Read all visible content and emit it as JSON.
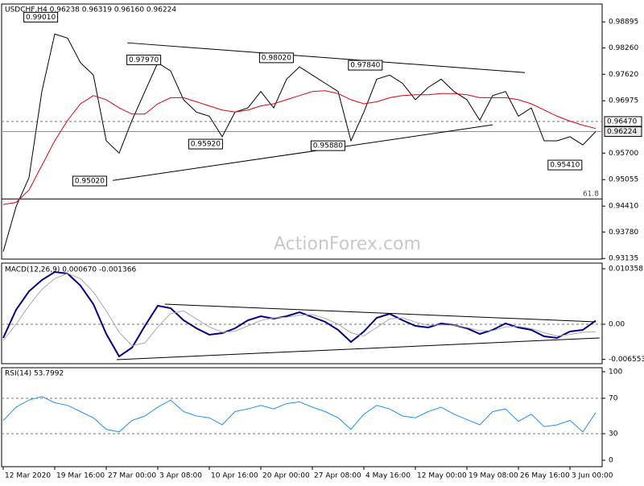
{
  "chart_data": [
    {
      "type": "line",
      "title": "USDCHF,H4  0.96238 0.96319 0.96160 0.96224",
      "watermark": "ActionForex.com",
      "xlim": [
        -0.125,
        46.5
      ],
      "ylim": [
        0.9312,
        0.9933
      ],
      "yticks": [
        0.98895,
        {
          "value": 0.9826,
          "label": "0.98260"
        },
        {
          "value": 0.9762,
          "label": "0.97620"
        },
        0.96975,
        {
          "value": 0.957,
          "label": "0.95700"
        },
        0.95055,
        {
          "value": 0.9441,
          "label": "0.94410"
        },
        {
          "value": 0.9378,
          "label": "0.93780"
        },
        0.93135
      ],
      "series": [
        {
          "color": "#000000",
          "values": [
            0.933,
            0.944,
            0.951,
            0.972,
            0.986,
            0.985,
            0.979,
            0.976,
            0.96,
            0.957,
            0.965,
            0.972,
            0.979,
            0.977,
            0.97,
            0.967,
            0.966,
            0.961,
            0.967,
            0.968,
            0.972,
            0.968,
            0.975,
            0.978,
            0.976,
            0.974,
            0.972,
            0.96,
            0.967,
            0.975,
            0.976,
            0.974,
            0.97,
            0.973,
            0.975,
            0.972,
            0.97,
            0.965,
            0.971,
            0.972,
            0.966,
            0.968,
            0.96,
            0.96,
            0.961,
            0.959,
            0.96224
          ]
        },
        {
          "color": "#e0000f",
          "values": [
            0.9445,
            0.945,
            0.948,
            0.954,
            0.96,
            0.965,
            0.969,
            0.971,
            0.97,
            0.968,
            0.9665,
            0.9665,
            0.969,
            0.9705,
            0.9705,
            0.9695,
            0.9685,
            0.9675,
            0.967,
            0.9675,
            0.9685,
            0.969,
            0.97,
            0.971,
            0.972,
            0.9722,
            0.9715,
            0.97,
            0.969,
            0.9695,
            0.9705,
            0.971,
            0.9712,
            0.9712,
            0.9715,
            0.9715,
            0.9712,
            0.9705,
            0.9705,
            0.9705,
            0.97,
            0.969,
            0.9675,
            0.966,
            0.9648,
            0.9638,
            0.963
          ]
        }
      ],
      "annotations": [
        {
          "label": "0.99010",
          "value": 0.9901,
          "x": 1.6
        },
        {
          "label": "0.97970",
          "value": 0.9797,
          "x": 9.6
        },
        {
          "label": "0.98020",
          "value": 0.9802,
          "x": 19.9
        },
        {
          "label": "0.97840",
          "value": 0.9784,
          "x": 26.8
        },
        {
          "label": "0.95920",
          "value": 0.9592,
          "x": 14.4
        },
        {
          "label": "0.95880",
          "value": 0.9588,
          "x": 23.9
        },
        {
          "label": "0.95020",
          "value": 0.9502,
          "x": 5.4
        },
        {
          "label": "0.95410",
          "value": 0.9541,
          "x": 42.3
        }
      ],
      "trendlines": [
        {
          "x": [
            9.625,
            40.5
          ],
          "y": [
            0.98386,
            0.97661
          ]
        },
        {
          "x": [
            8.5,
            38
          ],
          "y": [
            0.95036,
            0.96388
          ]
        }
      ],
      "levels": [
        {
          "value": 0.9647,
          "style": "dashed"
        },
        {
          "value": 0.96224,
          "style": "solid"
        }
      ],
      "fib_level": {
        "ratio": 61.8,
        "price": 0.94585
      },
      "price_markers": [
        {
          "value": 0.9647,
          "label": "0.96470"
        },
        {
          "value": 0.96224,
          "label": "0.96224"
        }
      ]
    },
    {
      "type": "line",
      "title": "MACD(12,26,9) 0.000670 -0.001366",
      "xlim": [
        -0.125,
        46.5
      ],
      "ylim": [
        -0.00736,
        0.01141
      ],
      "yticks": [
        0.010358,
        {
          "value": 0,
          "label": "0.00"
        },
        -0.006553
      ],
      "levels": [
        {
          "value": 0,
          "style": "dashed"
        }
      ],
      "series": [
        {
          "color": "#000080",
          "values": [
            -0.00255,
            0.0027,
            0.00615,
            0.00826,
            0.00976,
            0.00946,
            0.0072,
            0.00375,
            -0.0018,
            -0.006,
            -0.00435,
            -0.0003,
            0.00345,
            0.003,
            0.00075,
            -0.00075,
            -0.00195,
            -0.00165,
            -0.00075,
            0.00075,
            0.0015,
            0.00105,
            0.0015,
            0.00225,
            0.00135,
            0.00045,
            -0.00105,
            -0.0033,
            -0.00135,
            0.0012,
            0.00195,
            0.00075,
            -0.0003,
            -0.0006,
            0.00015,
            -0.00015,
            -0.00075,
            -0.0018,
            -0.00105,
            0.00015,
            -0.0006,
            -0.00105,
            -0.00225,
            -0.00255,
            -0.00135,
            -0.00105,
            0.00067
          ]
        },
        {
          "color": "#a8a8a8",
          "values": [
            -0.003,
            0,
            0.0035,
            0.0065,
            0.0085,
            0.0095,
            0.0085,
            0.006,
            0.0025,
            -0.0015,
            -0.004,
            -0.0035,
            -0.0005,
            0.002,
            0.0025,
            0.001,
            -0.0005,
            -0.0015,
            -0.0013,
            -0.0003,
            0.0007,
            0.0012,
            0.0013,
            0.0017,
            0.0018,
            0.0011,
            0,
            -0.0016,
            -0.0022,
            -0.0006,
            0.001,
            0.0012,
            0.0004,
            -0.0002,
            -0.0001,
            -0.0002,
            -0.0006,
            -0.0012,
            -0.0012,
            -0.0005,
            -0.0004,
            -0.0008,
            -0.0016,
            -0.0022,
            -0.0019,
            -0.0015,
            -0.001366
          ]
        }
      ],
      "trendlines": [
        {
          "x": [
            12.56,
            46.0
          ],
          "y": [
            0.00375,
            0.00045
          ]
        },
        {
          "x": [
            8.81,
            46.3
          ],
          "y": [
            -0.0066,
            -0.00255
          ]
        }
      ]
    },
    {
      "type": "line",
      "title": "RSI(14) 53.7992",
      "xlim": [
        -0.125,
        46.5
      ],
      "ylim": [
        -7.3,
        104.5
      ],
      "yticks": [
        100,
        70,
        30,
        0
      ],
      "levels": [
        {
          "value": 70,
          "style": "dashed"
        },
        {
          "value": 30,
          "style": "dashed"
        }
      ],
      "series": [
        {
          "color": "#1e90ff",
          "values": [
            45,
            60,
            68,
            72,
            65,
            62,
            55,
            48,
            35,
            32,
            45,
            50,
            60,
            68,
            55,
            50,
            48,
            40,
            55,
            58,
            62,
            58,
            64,
            66,
            60,
            55,
            48,
            35,
            52,
            62,
            58,
            50,
            48,
            55,
            60,
            52,
            46,
            40,
            55,
            58,
            44,
            52,
            38,
            40,
            45,
            32,
            53.8
          ]
        }
      ],
      "xticks": [
        {
          "value": 0,
          "label": "12 Mar 2020"
        },
        {
          "value": 4,
          "label": "19 Mar 16:00"
        },
        {
          "value": 8,
          "label": "27 Mar 00:00"
        },
        {
          "value": 12,
          "label": "3 Apr 08:00"
        },
        {
          "value": 16,
          "label": "10 Apr 16:00"
        },
        {
          "value": 20,
          "label": "20 Apr 00:00"
        },
        {
          "value": 24,
          "label": "27 Apr 08:00"
        },
        {
          "value": 28,
          "label": "4 May 16:00"
        },
        {
          "value": 32,
          "label": "12 May 00:00"
        },
        {
          "value": 36,
          "label": "19 May 08:00"
        },
        {
          "value": 40,
          "label": "26 May 16:00"
        },
        {
          "value": 44,
          "label": "3 Jun 00:00"
        }
      ]
    }
  ]
}
